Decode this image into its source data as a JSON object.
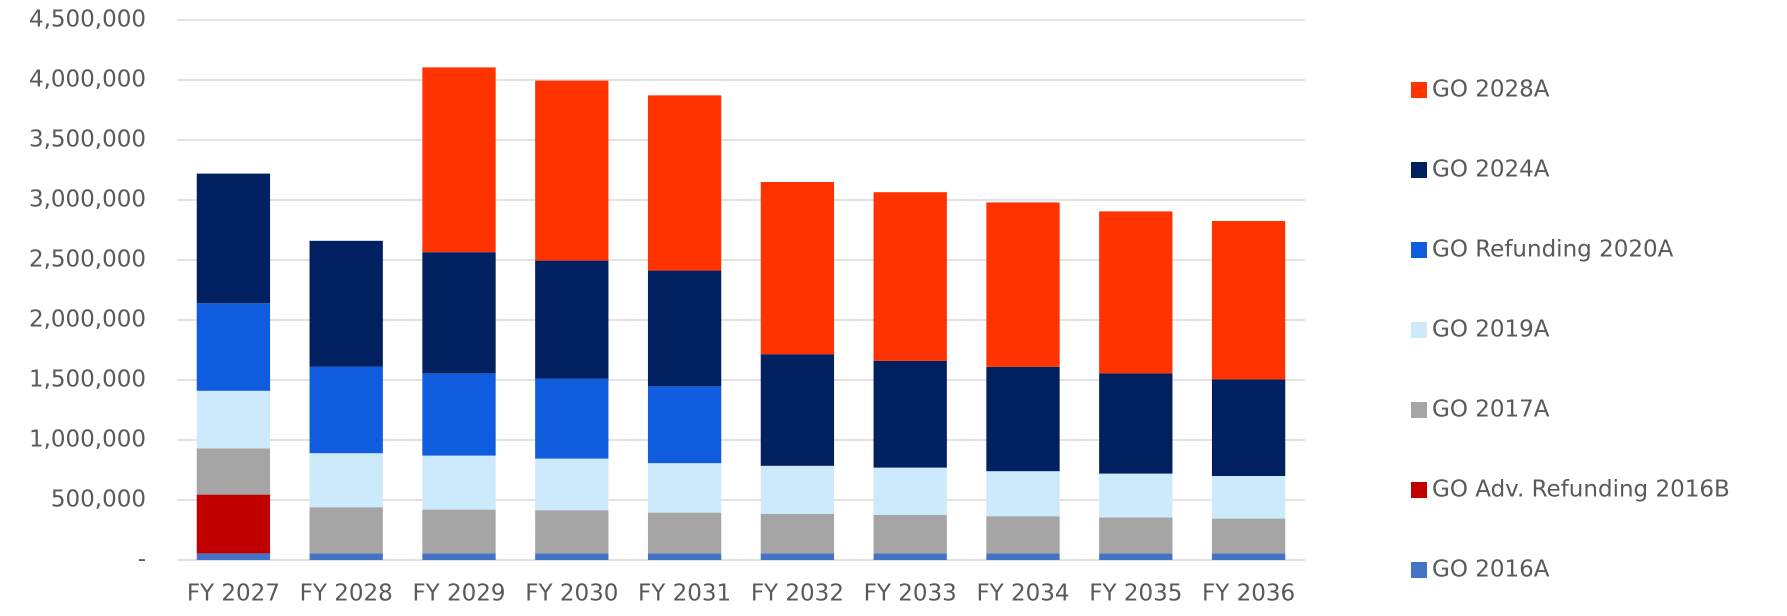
{
  "chart_data": {
    "type": "stacked-bar",
    "categories": [
      "FY 2027",
      "FY 2028",
      "FY 2029",
      "FY 2030",
      "FY 2031",
      "FY 2032",
      "FY 2033",
      "FY 2034",
      "FY 2035",
      "FY 2036"
    ],
    "series": [
      {
        "name": "GO 2016A",
        "color": "#4472c4",
        "values": [
          55000,
          55000,
          55000,
          55000,
          55000,
          55000,
          55000,
          55000,
          55000,
          55000
        ]
      },
      {
        "name": "GO Adv. Refunding 2016B",
        "color": "#c00000",
        "values": [
          490000,
          0,
          0,
          0,
          0,
          0,
          0,
          0,
          0,
          0
        ]
      },
      {
        "name": "GO 2017A",
        "color": "#a5a5a5",
        "values": [
          385000,
          385000,
          365000,
          360000,
          340000,
          330000,
          320000,
          310000,
          300000,
          290000
        ]
      },
      {
        "name": "GO 2019A",
        "color": "#cdeafd",
        "values": [
          480000,
          450000,
          450000,
          430000,
          412000,
          400000,
          395000,
          375000,
          365000,
          355000
        ]
      },
      {
        "name": "GO Refunding 2020A",
        "color": "#0f5cdf",
        "values": [
          730000,
          720000,
          685000,
          665000,
          640000,
          0,
          0,
          0,
          0,
          0
        ]
      },
      {
        "name": "GO 2024A",
        "color": "#002060",
        "values": [
          1080000,
          1050000,
          1010000,
          985000,
          965000,
          930000,
          890000,
          870000,
          835000,
          805000
        ]
      },
      {
        "name": "GO 2028A",
        "color": "#ff3300",
        "values": [
          0,
          0,
          1540000,
          1500000,
          1460000,
          1435000,
          1405000,
          1370000,
          1350000,
          1320000
        ]
      }
    ],
    "ylim": [
      0,
      4500000
    ],
    "yticks": [
      {
        "value": 0,
        "label": "-"
      },
      {
        "value": 500000,
        "label": "500,000"
      },
      {
        "value": 1000000,
        "label": "1,000,000"
      },
      {
        "value": 1500000,
        "label": "1,500,000"
      },
      {
        "value": 2000000,
        "label": "2,000,000"
      },
      {
        "value": 2500000,
        "label": "2,500,000"
      },
      {
        "value": 3000000,
        "label": "3,000,000"
      },
      {
        "value": 3500000,
        "label": "3,500,000"
      },
      {
        "value": 4000000,
        "label": "4,000,000"
      },
      {
        "value": 4500000,
        "label": "4,500,000"
      }
    ],
    "grid": true,
    "legend": "right"
  }
}
